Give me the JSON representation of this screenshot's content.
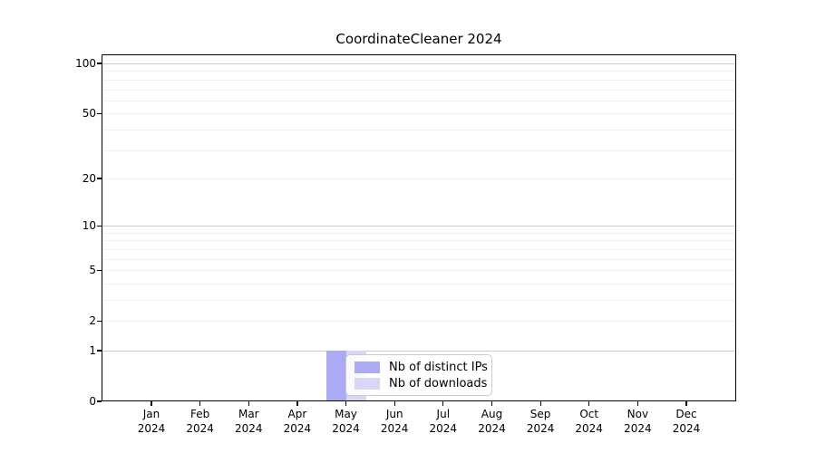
{
  "figure": {
    "background": "#ffffff"
  },
  "chart_data": {
    "type": "bar",
    "title": "CoordinateCleaner 2024",
    "categories": [
      "Jan 2024",
      "Feb 2024",
      "Mar 2024",
      "Apr 2024",
      "May 2024",
      "Jun 2024",
      "Jul 2024",
      "Aug 2024",
      "Sep 2024",
      "Oct 2024",
      "Nov 2024",
      "Dec 2024"
    ],
    "series": [
      {
        "name": "Nb of distinct IPs",
        "color": "#ababf5",
        "values": [
          0,
          0,
          0,
          0,
          1,
          0,
          0,
          0,
          0,
          0,
          0,
          0
        ]
      },
      {
        "name": "Nb of downloads",
        "color": "#d7d7f7",
        "values": [
          0,
          0,
          0,
          0,
          1,
          0,
          0,
          0,
          0,
          0,
          0,
          0
        ]
      }
    ],
    "y_axis": {
      "scale": "log1p",
      "ticks": [
        0,
        1,
        2,
        5,
        10,
        20,
        50,
        100
      ],
      "major_gridlines": [
        1,
        10,
        100
      ],
      "minor_gridlines": [
        2,
        3,
        4,
        5,
        6,
        7,
        8,
        9,
        20,
        30,
        40,
        50,
        60,
        70,
        80,
        90
      ],
      "range": [
        0,
        100
      ]
    },
    "grid": "horizontal",
    "legend": {
      "position": "inside-bottom-center"
    }
  },
  "colors": {
    "major_grid": "#c8c8c8",
    "minor_grid": "#efefef",
    "spine": "#000000",
    "text": "#000000",
    "legend_border": "#cccccc"
  }
}
